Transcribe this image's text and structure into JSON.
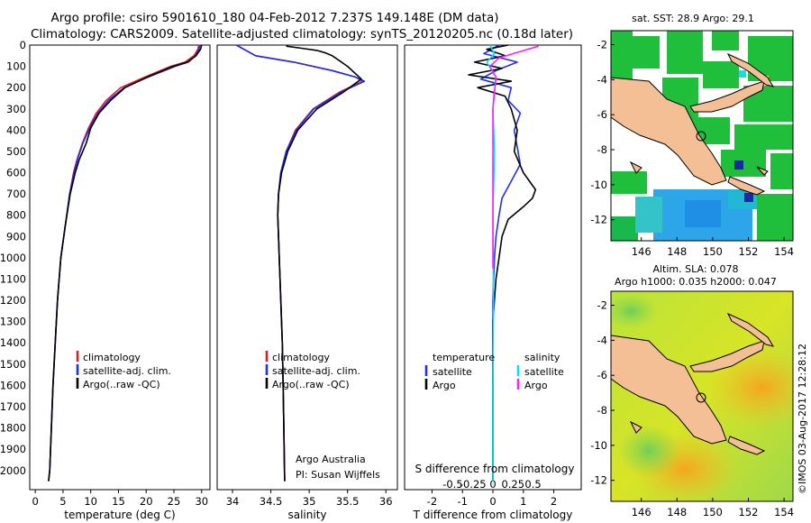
{
  "header": {
    "title_line1": "Argo profile: csiro 5901610_180 04-Feb-2012 7.237S 149.148E (DM data)",
    "title_line2": "Climatology: CARS2009. Satellite-adjusted climatology: synTS_20120205.nc (0.18d later)"
  },
  "colors": {
    "climatology": "#e41a1c",
    "satellite": "#1f2ff0",
    "argo": "#000000",
    "sal_satellite": "#00e5ee",
    "sal_argo": "#ff20ff",
    "land": "#f4bf95"
  },
  "depth_axis": {
    "ticks": [
      0,
      100,
      200,
      300,
      400,
      500,
      600,
      700,
      800,
      900,
      1000,
      1100,
      1200,
      1300,
      1400,
      1500,
      1600,
      1700,
      1800,
      1900,
      2000
    ],
    "ylim": [
      2090,
      0
    ]
  },
  "chart_data": [
    {
      "type": "line",
      "xlabel": "temperature (deg C)",
      "xlim": [
        -1,
        31.5
      ],
      "xticks": [
        0,
        5,
        10,
        15,
        20,
        25,
        30
      ],
      "legend": {
        "placement": "bottom-center",
        "entries": [
          "climatology",
          "satellite-adj. clim.",
          "Argo(..raw -QC)"
        ]
      },
      "series": [
        {
          "name": "climatology",
          "color_key": "climatology",
          "x": [
            29.5,
            29.3,
            28.6,
            27.0,
            24.4,
            19.8,
            15.4,
            12.8,
            11.0,
            9.6,
            8.5,
            7.5,
            6.9,
            6.2,
            5.4,
            4.6,
            4.0,
            3.6,
            3.2,
            2.9,
            2.6,
            2.4
          ],
          "y": [
            0,
            20,
            50,
            80,
            100,
            150,
            200,
            260,
            320,
            390,
            460,
            540,
            600,
            700,
            850,
            1000,
            1200,
            1400,
            1600,
            1800,
            2000,
            2050
          ]
        },
        {
          "name": "satellite-adj. clim.",
          "color_key": "satellite",
          "x": [
            29.7,
            29.5,
            28.9,
            27.6,
            25.2,
            20.4,
            16.0,
            13.2,
            11.3,
            9.8,
            8.6,
            7.6,
            7.0,
            6.2,
            5.4,
            4.6,
            4.0,
            3.6,
            3.2,
            2.9,
            2.6,
            2.4
          ],
          "y": [
            0,
            20,
            50,
            80,
            100,
            150,
            200,
            260,
            320,
            390,
            460,
            540,
            600,
            700,
            850,
            1000,
            1200,
            1400,
            1600,
            1800,
            2000,
            2050
          ]
        },
        {
          "name": "Argo(..raw -QC)",
          "color_key": "argo",
          "x": [
            30.0,
            29.8,
            29.0,
            27.4,
            24.8,
            20.2,
            16.2,
            13.6,
            11.5,
            10.0,
            9.2,
            7.9,
            7.2,
            6.3,
            5.4,
            4.6,
            4.0,
            3.6,
            3.2,
            2.9,
            2.6,
            2.4
          ],
          "y": [
            0,
            20,
            50,
            80,
            100,
            150,
            200,
            260,
            320,
            390,
            460,
            540,
            600,
            700,
            850,
            1000,
            1200,
            1400,
            1600,
            1800,
            2000,
            2050
          ]
        }
      ]
    },
    {
      "type": "line",
      "xlabel": "salinity",
      "xlim": [
        33.8,
        36.15
      ],
      "xticks": [
        34,
        34.5,
        35,
        35.5,
        36
      ],
      "legend": {
        "placement": "bottom-center",
        "entries": [
          "climatology",
          "satellite-adj. clim.",
          "Argo(..raw -QC)"
        ]
      },
      "annotation": [
        "Argo Australia",
        "PI: Susan Wijffels"
      ],
      "series": [
        {
          "name": "climatology",
          "color_key": "climatology",
          "x": [
            34.05,
            34.3,
            34.8,
            35.3,
            35.6,
            35.7,
            35.4,
            35.05,
            34.82,
            34.7,
            34.63,
            34.6,
            34.59,
            34.6,
            34.61,
            34.63,
            34.65,
            34.66,
            34.67,
            34.68
          ],
          "y": [
            0,
            50,
            80,
            120,
            150,
            170,
            220,
            300,
            400,
            500,
            600,
            700,
            800,
            900,
            1000,
            1200,
            1400,
            1600,
            1800,
            2050
          ]
        },
        {
          "name": "satellite-adj. clim.",
          "color_key": "satellite",
          "x": [
            34.05,
            34.3,
            34.8,
            35.3,
            35.6,
            35.72,
            35.42,
            35.06,
            34.83,
            34.7,
            34.63,
            34.6,
            34.59,
            34.6,
            34.61,
            34.63,
            34.65,
            34.66,
            34.67,
            34.68
          ],
          "y": [
            0,
            50,
            80,
            120,
            150,
            170,
            220,
            300,
            400,
            500,
            600,
            700,
            800,
            900,
            1000,
            1200,
            1400,
            1600,
            1800,
            2050
          ]
        },
        {
          "name": "Argo(..raw -QC)",
          "color_key": "argo",
          "x": [
            34.7,
            34.9,
            35.1,
            35.2,
            35.3,
            35.5,
            35.68,
            35.45,
            35.1,
            34.85,
            34.72,
            34.64,
            34.6,
            34.59,
            34.6,
            34.61,
            34.63,
            34.65,
            34.66,
            34.67,
            34.68
          ],
          "y": [
            5,
            15,
            25,
            35,
            50,
            100,
            160,
            220,
            300,
            400,
            500,
            600,
            700,
            800,
            900,
            1000,
            1200,
            1400,
            1600,
            1800,
            2050
          ]
        }
      ]
    },
    {
      "type": "line",
      "xlabel": "T difference from climatology",
      "xlabel_top": "S difference from climatology",
      "xlim": [
        -2.9,
        2.9
      ],
      "xticks": [
        -2,
        -1,
        0,
        1,
        2
      ],
      "sticks_values": [
        -0.5,
        -0.25,
        0,
        0.25,
        0.5
      ],
      "sticks_labels": [
        "-0.5",
        "-0.25",
        "0",
        "0.25",
        "0.5"
      ],
      "legend": {
        "placement": "bottom-center",
        "temperature_title": "temperature",
        "salinity_title": "salinity",
        "entries": [
          "satellite",
          "Argo",
          "satellite",
          "Argo"
        ]
      },
      "series": [
        {
          "name": "satellite",
          "kind": "T",
          "color_key": "satellite",
          "x": [
            0.2,
            -0.3,
            0.8,
            0.1,
            -0.4,
            0.6,
            0.5,
            0.9,
            0.7,
            0.8,
            0.9,
            0.6,
            0.3,
            0.2,
            0.1,
            0.05,
            0.0,
            0.0,
            0.0
          ],
          "y": [
            0,
            40,
            80,
            120,
            160,
            200,
            260,
            320,
            400,
            480,
            560,
            640,
            720,
            800,
            900,
            1000,
            1200,
            1600,
            2050
          ]
        },
        {
          "name": "Argo",
          "kind": "T",
          "color_key": "argo",
          "x": [
            0.5,
            -0.2,
            0.4,
            -0.6,
            0.3,
            -0.8,
            0.6,
            -0.5,
            0.4,
            0.6,
            0.8,
            0.7,
            1.0,
            1.4,
            1.3,
            1.0,
            0.5,
            0.3,
            0.2,
            0.1,
            0.0,
            0.0,
            0.0
          ],
          "y": [
            0,
            20,
            50,
            80,
            110,
            140,
            170,
            200,
            240,
            300,
            400,
            500,
            600,
            680,
            720,
            760,
            820,
            900,
            1000,
            1100,
            1300,
            1600,
            2050
          ]
        },
        {
          "name": "satellite",
          "kind": "S",
          "color_key": "sal_satellite",
          "x": [
            -0.1,
            0.05,
            -0.2,
            0.1,
            0.0,
            0.05,
            0.0,
            0.02,
            0.0,
            0.0
          ],
          "y": [
            0,
            40,
            80,
            150,
            300,
            500,
            800,
            1200,
            1600,
            2050
          ]
        },
        {
          "name": "Argo",
          "kind": "S",
          "color_key": "sal_argo",
          "x": [
            1.5,
            0.9,
            0.2,
            -0.1,
            0.1,
            0.0,
            0.0,
            0.0,
            0.0
          ],
          "y": [
            5,
            30,
            60,
            100,
            150,
            300,
            500,
            800,
            1050
          ]
        }
      ]
    }
  ],
  "maps": {
    "xticks": [
      "146",
      "148",
      "150",
      "152",
      "154"
    ],
    "yticks": [
      "-2",
      "-4",
      "-6",
      "-8",
      "-10",
      "-12"
    ],
    "map1": {
      "title": "sat. SST: 28.9 Argo: 29.1"
    },
    "map2": {
      "title_line1": "Altim. SLA: 0.078",
      "title_line2": "Argo h1000: 0.035 h2000: 0.047"
    }
  },
  "footer": {
    "credit": "©IMOS 03-Aug-2017 12:28:12"
  }
}
